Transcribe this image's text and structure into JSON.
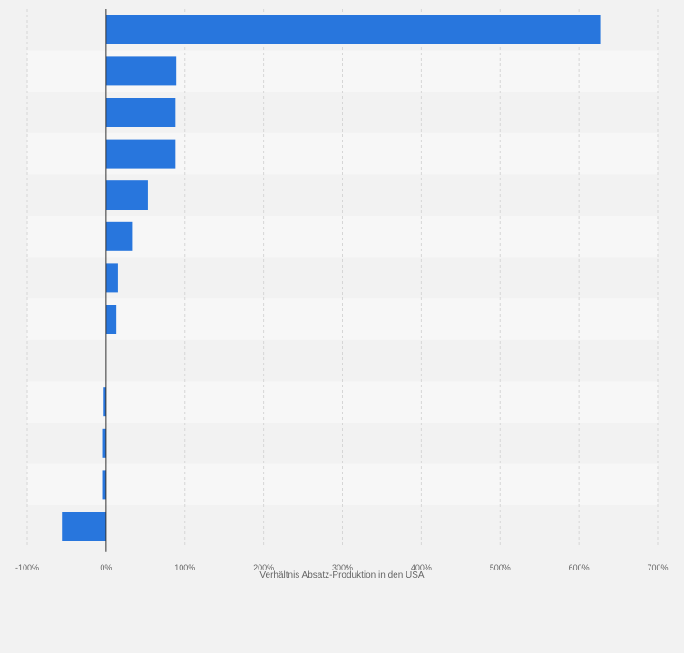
{
  "chart_data": {
    "type": "bar",
    "orientation": "horizontal",
    "xlabel": "Verhältnis Absatz-Produktion in den USA",
    "xlim": [
      -100,
      700
    ],
    "xticks": [
      -100,
      0,
      100,
      200,
      300,
      400,
      500,
      600,
      700
    ],
    "xtick_labels": [
      "-100%",
      "0%",
      "100%",
      "200%",
      "300%",
      "400%",
      "500%",
      "600%",
      "700%"
    ],
    "values": [
      627,
      89,
      88,
      88,
      53,
      34,
      15,
      13,
      0,
      -3,
      -5,
      -5,
      -56
    ],
    "grid": true,
    "bar_color": "#2876dd",
    "row_band_colors": [
      "#f2f2f2",
      "#f7f7f7"
    ]
  }
}
